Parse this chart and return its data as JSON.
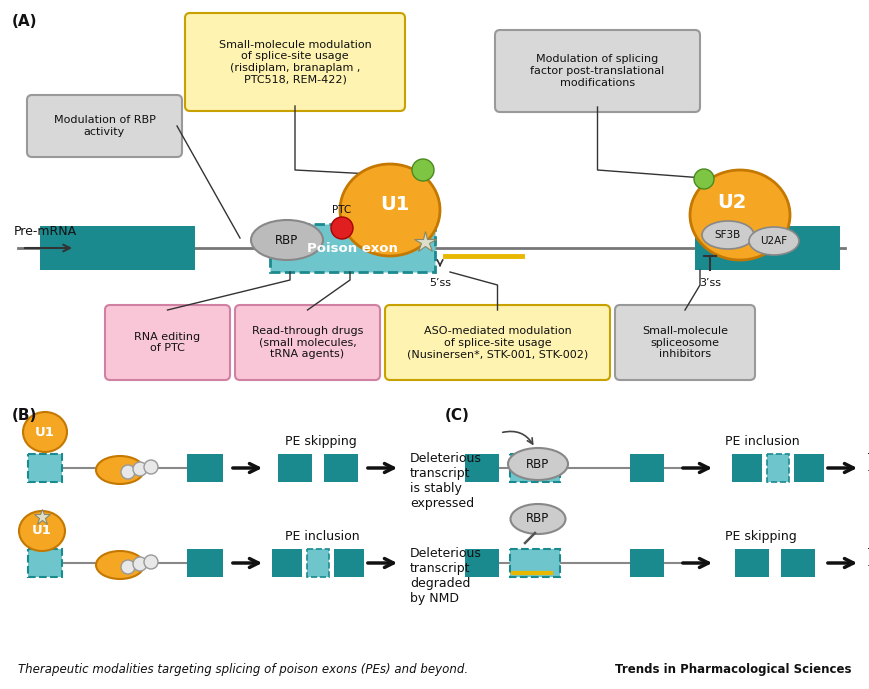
{
  "title_A": "(A)",
  "title_B": "(B)",
  "title_C": "(C)",
  "teal_color": "#1A8A8F",
  "teal_light": "#6EC6CC",
  "orange_color": "#F5A623",
  "gray_light": "#CCCCCC",
  "gray_mid": "#BBBBBB",
  "pink_bg": "#F9C6D8",
  "yellow_bg": "#FEF3B0",
  "gray_bg": "#D8D8D8",
  "green_dot": "#7DC542",
  "red_dot": "#E02020",
  "box1_text": "Small-molecule modulation\nof splice-site usage\n(risdiplam, branaplam ,\nPTC518, REM-422)",
  "box2_text": "Modulation of splicing\nfactor post-translational\nmodifications",
  "box3_text": "Modulation of RBP\nactivity",
  "box4_text": "RNA editing\nof PTC",
  "box5_text": "Read-through drugs\n(small molecules,\ntRNA agents)",
  "box6_text": "ASO-mediated modulation\nof splice-site usage\n(Nusinersen*, STK-001, STK-002)",
  "box7_text": "Small-molecule\nspliceosome\ninhibitors",
  "premrna": "Pre-mRNA",
  "poison_exon": "Poison exon",
  "five_ss": "5’ss",
  "three_ss": "3’ss",
  "ptc": "PTC",
  "b_r1_mid": "PE skipping",
  "b_r1_out": "Deleterious\ntranscript\nis stably\nexpressed",
  "b_r2_mid": "PE inclusion",
  "b_r2_out": "Deleterious\ntranscript\ndegraded\nby NMD",
  "c_r1_mid": "PE inclusion",
  "c_r1_out": "Target\ntranscript\ndegraded\nby NMD",
  "c_r2_mid": "PE skipping",
  "c_r2_out": "Target\ntranscript\nis stably\nexpressed",
  "caption": "Therapeutic modalities targeting splicing of poison exons (PEs) and beyond.",
  "journal": "Trends in Pharmacological Sciences"
}
